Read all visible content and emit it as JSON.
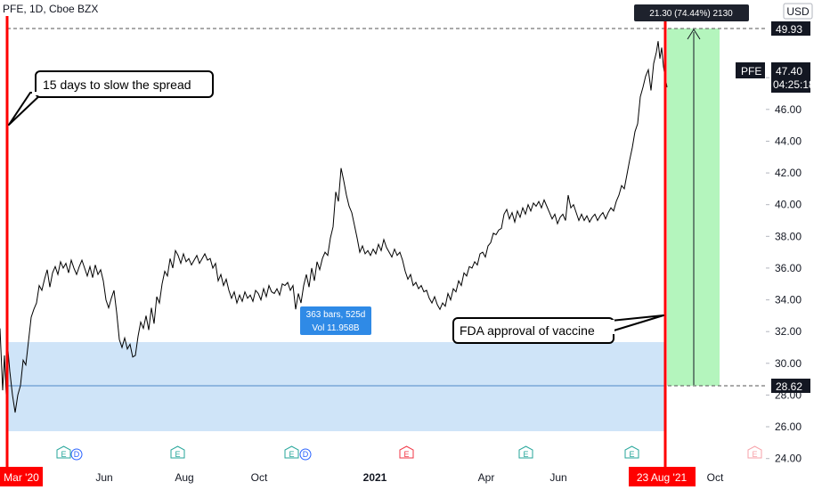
{
  "header": {
    "symbol_text": "PFE, 1D, Cboe BZX",
    "currency": "USD"
  },
  "chart_data": {
    "type": "line",
    "y_ticks": [
      24.0,
      26.0,
      28.0,
      30.0,
      32.0,
      34.0,
      36.0,
      38.0,
      40.0,
      42.0,
      44.0,
      46.0,
      48.0
    ],
    "x_labels": [
      "Mar '20",
      "Jun",
      "Aug",
      "Oct",
      "2021",
      "Apr",
      "Jun",
      "23 Aug '21",
      "Oct"
    ],
    "ylim": [
      23.7,
      51.1
    ],
    "series": [
      {
        "values": [
          [
            0,
            32.2
          ],
          [
            3,
            28.3
          ],
          [
            5,
            30.5
          ],
          [
            7,
            28.0
          ],
          [
            9,
            30.8
          ],
          [
            11,
            29.5
          ],
          [
            14,
            28.0
          ],
          [
            17,
            26.9
          ],
          [
            20,
            28.0
          ],
          [
            23,
            28.6
          ],
          [
            26,
            30.2
          ],
          [
            29,
            29.9
          ],
          [
            32,
            31.4
          ],
          [
            35,
            32.9
          ],
          [
            38,
            33.4
          ],
          [
            41,
            33.8
          ],
          [
            44,
            34.9
          ],
          [
            47,
            34.6
          ],
          [
            50,
            35.3
          ],
          [
            53,
            35.9
          ],
          [
            56,
            34.8
          ],
          [
            59,
            35.7
          ],
          [
            62,
            36.1
          ],
          [
            65,
            35.6
          ],
          [
            68,
            36.4
          ],
          [
            71,
            36.0
          ],
          [
            74,
            36.3
          ],
          [
            77,
            35.7
          ],
          [
            80,
            36.5
          ],
          [
            83,
            36.0
          ],
          [
            86,
            35.6
          ],
          [
            89,
            36.1
          ],
          [
            92,
            36.5
          ],
          [
            95,
            36.0
          ],
          [
            98,
            35.5
          ],
          [
            101,
            36.1
          ],
          [
            104,
            35.4
          ],
          [
            107,
            36.2
          ],
          [
            110,
            35.6
          ],
          [
            113,
            35.9
          ],
          [
            116,
            35.2
          ],
          [
            119,
            34.0
          ],
          [
            122,
            33.5
          ],
          [
            125,
            34.1
          ],
          [
            128,
            34.6
          ],
          [
            131,
            33.2
          ],
          [
            134,
            31.5
          ],
          [
            137,
            31.0
          ],
          [
            140,
            31.6
          ],
          [
            143,
            30.9
          ],
          [
            146,
            31.2
          ],
          [
            149,
            30.4
          ],
          [
            152,
            30.5
          ],
          [
            155,
            31.7
          ],
          [
            158,
            32.6
          ],
          [
            161,
            32.2
          ],
          [
            164,
            33.0
          ],
          [
            167,
            32.1
          ],
          [
            170,
            33.5
          ],
          [
            173,
            32.5
          ],
          [
            176,
            34.2
          ],
          [
            179,
            33.8
          ],
          [
            182,
            35.0
          ],
          [
            185,
            35.8
          ],
          [
            188,
            35.5
          ],
          [
            191,
            36.6
          ],
          [
            194,
            36.0
          ],
          [
            197,
            37.1
          ],
          [
            200,
            36.8
          ],
          [
            203,
            36.3
          ],
          [
            206,
            36.9
          ],
          [
            209,
            36.4
          ],
          [
            212,
            36.6
          ],
          [
            215,
            36.2
          ],
          [
            218,
            36.5
          ],
          [
            221,
            36.8
          ],
          [
            224,
            36.3
          ],
          [
            227,
            36.6
          ],
          [
            230,
            36.9
          ],
          [
            233,
            36.5
          ],
          [
            236,
            36.6
          ],
          [
            239,
            36.0
          ],
          [
            242,
            36.3
          ],
          [
            245,
            35.2
          ],
          [
            248,
            35.6
          ],
          [
            251,
            34.9
          ],
          [
            254,
            35.3
          ],
          [
            257,
            34.6
          ],
          [
            260,
            34.1
          ],
          [
            263,
            34.5
          ],
          [
            266,
            33.8
          ],
          [
            269,
            34.3
          ],
          [
            272,
            33.9
          ],
          [
            275,
            34.5
          ],
          [
            278,
            34.1
          ],
          [
            281,
            34.3
          ],
          [
            284,
            33.9
          ],
          [
            287,
            34.6
          ],
          [
            290,
            34.4
          ],
          [
            293,
            34.0
          ],
          [
            296,
            34.7
          ],
          [
            299,
            34.2
          ],
          [
            302,
            34.9
          ],
          [
            305,
            34.5
          ],
          [
            308,
            34.4
          ],
          [
            311,
            34.7
          ],
          [
            314,
            34.3
          ],
          [
            317,
            35.0
          ],
          [
            320,
            34.9
          ],
          [
            323,
            35.1
          ],
          [
            326,
            34.6
          ],
          [
            329,
            34.9
          ],
          [
            332,
            33.4
          ],
          [
            335,
            34.4
          ],
          [
            338,
            33.8
          ],
          [
            341,
            34.9
          ],
          [
            344,
            35.6
          ],
          [
            347,
            34.8
          ],
          [
            350,
            36.0
          ],
          [
            353,
            35.2
          ],
          [
            356,
            36.4
          ],
          [
            359,
            35.9
          ],
          [
            362,
            36.6
          ],
          [
            365,
            37.0
          ],
          [
            368,
            36.8
          ],
          [
            371,
            37.9
          ],
          [
            374,
            38.6
          ],
          [
            377,
            40.8
          ],
          [
            380,
            40.2
          ],
          [
            383,
            42.3
          ],
          [
            386,
            41.5
          ],
          [
            389,
            40.6
          ],
          [
            392,
            39.9
          ],
          [
            395,
            39.5
          ],
          [
            398,
            38.7
          ],
          [
            401,
            37.9
          ],
          [
            404,
            37.0
          ],
          [
            407,
            37.4
          ],
          [
            410,
            36.9
          ],
          [
            413,
            37.1
          ],
          [
            416,
            36.8
          ],
          [
            419,
            37.2
          ],
          [
            422,
            36.9
          ],
          [
            425,
            37.5
          ],
          [
            428,
            37.1
          ],
          [
            431,
            37.8
          ],
          [
            434,
            37.3
          ],
          [
            437,
            37.0
          ],
          [
            440,
            36.7
          ],
          [
            443,
            37.2
          ],
          [
            446,
            36.8
          ],
          [
            449,
            37.0
          ],
          [
            452,
            36.5
          ],
          [
            455,
            35.8
          ],
          [
            458,
            35.3
          ],
          [
            461,
            35.6
          ],
          [
            464,
            34.9
          ],
          [
            467,
            35.1
          ],
          [
            470,
            34.7
          ],
          [
            473,
            34.9
          ],
          [
            476,
            34.5
          ],
          [
            479,
            34.6
          ],
          [
            482,
            34.1
          ],
          [
            485,
            33.8
          ],
          [
            488,
            34.2
          ],
          [
            491,
            33.7
          ],
          [
            494,
            33.4
          ],
          [
            497,
            33.8
          ],
          [
            500,
            33.6
          ],
          [
            503,
            34.4
          ],
          [
            506,
            34.0
          ],
          [
            509,
            34.7
          ],
          [
            512,
            34.5
          ],
          [
            515,
            35.2
          ],
          [
            518,
            34.9
          ],
          [
            521,
            35.7
          ],
          [
            524,
            35.5
          ],
          [
            527,
            36.1
          ],
          [
            530,
            36.0
          ],
          [
            533,
            36.4
          ],
          [
            536,
            36.2
          ],
          [
            539,
            36.9
          ],
          [
            542,
            37.0
          ],
          [
            545,
            36.7
          ],
          [
            548,
            37.4
          ],
          [
            551,
            37.6
          ],
          [
            554,
            38.2
          ],
          [
            557,
            38.1
          ],
          [
            560,
            38.4
          ],
          [
            563,
            38.5
          ],
          [
            566,
            39.4
          ],
          [
            569,
            39.7
          ],
          [
            572,
            39.1
          ],
          [
            575,
            39.5
          ],
          [
            578,
            38.9
          ],
          [
            581,
            39.6
          ],
          [
            584,
            39.2
          ],
          [
            587,
            39.8
          ],
          [
            590,
            39.4
          ],
          [
            593,
            40.0
          ],
          [
            596,
            39.6
          ],
          [
            599,
            40.1
          ],
          [
            602,
            39.9
          ],
          [
            605,
            40.2
          ],
          [
            608,
            39.8
          ],
          [
            611,
            40.3
          ],
          [
            614,
            39.9
          ],
          [
            617,
            39.5
          ],
          [
            620,
            39.1
          ],
          [
            623,
            39.4
          ],
          [
            626,
            38.8
          ],
          [
            629,
            39.2
          ],
          [
            632,
            39.4
          ],
          [
            635,
            39.0
          ],
          [
            638,
            40.6
          ],
          [
            641,
            39.8
          ],
          [
            644,
            40.0
          ],
          [
            647,
            39.5
          ],
          [
            650,
            39.0
          ],
          [
            653,
            39.4
          ],
          [
            656,
            39.0
          ],
          [
            659,
            39.3
          ],
          [
            662,
            38.9
          ],
          [
            665,
            39.2
          ],
          [
            668,
            39.4
          ],
          [
            671,
            39.0
          ],
          [
            674,
            39.3
          ],
          [
            677,
            39.5
          ],
          [
            680,
            39.1
          ],
          [
            683,
            39.5
          ],
          [
            686,
            39.8
          ],
          [
            689,
            39.6
          ],
          [
            692,
            40.2
          ],
          [
            695,
            40.6
          ],
          [
            698,
            41.2
          ],
          [
            701,
            41.0
          ],
          [
            704,
            41.9
          ],
          [
            707,
            42.8
          ],
          [
            710,
            43.6
          ],
          [
            713,
            44.6
          ],
          [
            716,
            45.1
          ],
          [
            719,
            46.8
          ],
          [
            722,
            47.4
          ],
          [
            725,
            48.1
          ],
          [
            728,
            48.5
          ],
          [
            731,
            47.2
          ],
          [
            734,
            48.9
          ],
          [
            737,
            49.6
          ],
          [
            739,
            50.3
          ],
          [
            741,
            49.2
          ],
          [
            743,
            49.9
          ],
          [
            745,
            48.7
          ],
          [
            747,
            48.0
          ],
          [
            749,
            47.4
          ]
        ]
      }
    ],
    "tooltip": "21.30 (74.44%) 2130",
    "measure_box": {
      "line1": "363 bars, 525d",
      "line2": "Vol 11.958B"
    },
    "price_tags": {
      "high": "49.93",
      "low": "28.62",
      "last_symbol": "PFE",
      "last_price": "47.40",
      "countdown": "04:25:18"
    },
    "annotations": [
      "15 days to slow the spread",
      "FDA approval of vaccine"
    ],
    "events": [
      "E",
      "D",
      "E",
      "E",
      "D",
      "E",
      "E",
      "E",
      "E"
    ],
    "colors": {
      "line": "#000000",
      "red_marker": "#ff0000",
      "blue_range": "#cfe4f8",
      "green_range": "#b4f5bd",
      "tag_dark": "#131722",
      "tooltip_bg": "#1e222d",
      "measure_bg": "#2f8ae6",
      "event_green": "#26a69a",
      "event_blue": "#2962ff",
      "event_red": "#f23645"
    }
  }
}
